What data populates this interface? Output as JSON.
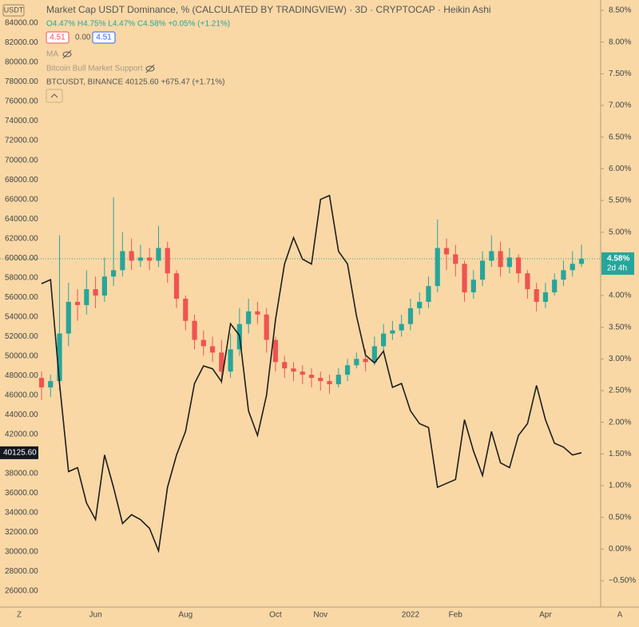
{
  "chart_data": {
    "type": "candlestick",
    "title": "Market Cap USDT Dominance, % (CALCULATED BY TRADINGVIEW) · 3D · CRYPTOCAP · Heikin Ashi",
    "ohlc_legend": "O4.47% H4.75% L4.47% C4.58% +0.05% (+1.21%)",
    "indicator_inputs": [
      "4.51",
      "0.00",
      "4.51"
    ],
    "indicators": [
      "MA",
      "Bitcoin Bull Market Support"
    ],
    "overlay_legend": "BTCUSDT, BINANCE  40125.60  +675.47 (+1.71%)",
    "scale_label": "USDT",
    "corner_labels": [
      "Z",
      "A"
    ],
    "categories": [
      null,
      null,
      null,
      null,
      null,
      null,
      "Jun",
      null,
      null,
      null,
      null,
      null,
      null,
      null,
      null,
      null,
      "Aug",
      null,
      null,
      null,
      null,
      null,
      null,
      null,
      null,
      null,
      "Oct",
      null,
      null,
      null,
      null,
      "Nov",
      null,
      null,
      null,
      null,
      null,
      null,
      null,
      null,
      null,
      "2022",
      null,
      null,
      null,
      null,
      "Feb",
      null,
      null,
      null,
      null,
      null,
      null,
      null,
      null,
      null,
      "Apr",
      null,
      null,
      null,
      null
    ],
    "up_color": "#26a69a",
    "down_color": "#ef5350",
    "axis": "y2",
    "open": [
      2.7,
      2.55,
      2.65,
      3.4,
      3.9,
      3.85,
      4.1,
      4.0,
      4.3,
      4.4,
      4.7,
      4.55,
      4.6,
      4.55,
      4.75,
      4.35,
      3.95,
      3.6,
      3.3,
      3.2,
      3.1,
      2.8,
      3.15,
      3.55,
      3.75,
      3.7,
      3.3,
      2.95,
      2.85,
      2.8,
      2.75,
      2.7,
      2.65,
      2.6,
      2.75,
      2.9,
      3.0,
      2.95,
      3.2,
      3.4,
      3.45,
      3.55,
      3.8,
      3.9,
      4.15,
      4.75,
      4.65,
      4.5,
      4.05,
      4.25,
      4.55,
      4.7,
      4.45,
      4.6,
      4.35,
      4.1,
      3.9,
      4.05,
      4.25,
      4.4,
      4.5
    ],
    "high": [
      2.8,
      2.75,
      4.95,
      4.2,
      4.1,
      4.4,
      4.3,
      4.6,
      5.55,
      5.0,
      4.9,
      4.8,
      4.75,
      5.1,
      4.85,
      4.4,
      4.0,
      3.7,
      3.45,
      3.35,
      3.3,
      3.4,
      3.8,
      3.95,
      3.9,
      3.8,
      3.35,
      3.05,
      2.95,
      2.9,
      2.85,
      2.8,
      2.75,
      2.85,
      3.0,
      3.1,
      3.15,
      3.35,
      3.55,
      3.6,
      3.7,
      3.95,
      4.05,
      4.3,
      5.2,
      4.9,
      4.8,
      4.55,
      4.4,
      4.7,
      4.95,
      4.85,
      4.75,
      4.65,
      4.4,
      4.2,
      4.2,
      4.35,
      4.55,
      4.7,
      4.8
    ],
    "low": [
      2.35,
      2.4,
      2.5,
      3.2,
      3.6,
      3.7,
      3.8,
      3.9,
      4.15,
      4.3,
      4.4,
      4.45,
      4.4,
      4.45,
      4.2,
      3.8,
      3.45,
      3.15,
      3.05,
      2.95,
      2.6,
      2.7,
      3.05,
      3.4,
      3.55,
      3.1,
      2.8,
      2.7,
      2.65,
      2.6,
      2.55,
      2.5,
      2.45,
      2.55,
      2.65,
      2.85,
      2.8,
      2.9,
      3.1,
      3.3,
      3.35,
      3.45,
      3.7,
      3.8,
      4.05,
      4.4,
      4.3,
      3.9,
      3.95,
      4.15,
      4.45,
      4.3,
      4.35,
      4.2,
      3.95,
      3.75,
      3.8,
      4.0,
      4.15,
      4.3,
      4.45
    ],
    "close": [
      2.55,
      2.65,
      3.4,
      3.9,
      3.85,
      4.1,
      4.0,
      4.3,
      4.4,
      4.7,
      4.55,
      4.6,
      4.55,
      4.75,
      4.35,
      3.95,
      3.6,
      3.3,
      3.2,
      3.1,
      2.8,
      3.15,
      3.55,
      3.75,
      3.7,
      3.3,
      2.95,
      2.85,
      2.8,
      2.75,
      2.7,
      2.65,
      2.6,
      2.75,
      2.9,
      3.0,
      2.95,
      3.2,
      3.4,
      3.45,
      3.55,
      3.8,
      3.9,
      4.15,
      4.75,
      4.65,
      4.5,
      4.05,
      4.25,
      4.55,
      4.7,
      4.45,
      4.6,
      4.35,
      4.1,
      3.9,
      4.05,
      4.25,
      4.4,
      4.5,
      4.58
    ],
    "overlay": {
      "type": "line",
      "color": "#1e1e1e",
      "values": [
        57400,
        57800,
        47200,
        38200,
        38600,
        35000,
        33300,
        39900,
        36600,
        32900,
        33800,
        33300,
        32400,
        30100,
        36600,
        39900,
        42300,
        47200,
        49000,
        48700,
        47400,
        53300,
        52100,
        44400,
        41900,
        46000,
        53700,
        59400,
        62100,
        59900,
        59400,
        66000,
        66400,
        60700,
        59400,
        54100,
        50100,
        49300,
        50500,
        46800,
        47200,
        44400,
        43100,
        42700,
        36600,
        37000,
        37400,
        43500,
        40300,
        37800,
        42300,
        39100,
        38600,
        41900,
        43100,
        47000,
        43500,
        41100,
        40700,
        39900,
        40125.6
      ]
    },
    "ylim": [
      26000,
      84000
    ],
    "yticks": [
      {
        "value": 84000,
        "label": "84000.00"
      },
      {
        "value": 82000,
        "label": "82000.00"
      },
      {
        "value": 80000,
        "label": "80000.00"
      },
      {
        "value": 78000,
        "label": "78000.00"
      },
      {
        "value": 76000,
        "label": "76000.00"
      },
      {
        "value": 74000,
        "label": "74000.00"
      },
      {
        "value": 72000,
        "label": "72000.00"
      },
      {
        "value": 70000,
        "label": "70000.00"
      },
      {
        "value": 68000,
        "label": "68000.00"
      },
      {
        "value": 66000,
        "label": "66000.00"
      },
      {
        "value": 64000,
        "label": "64000.00"
      },
      {
        "value": 62000,
        "label": "62000.00"
      },
      {
        "value": 60000,
        "label": "60000.00"
      },
      {
        "value": 58000,
        "label": "58000.00"
      },
      {
        "value": 56000,
        "label": "56000.00"
      },
      {
        "value": 54000,
        "label": "54000.00"
      },
      {
        "value": 52000,
        "label": "52000.00"
      },
      {
        "value": 50000,
        "label": "50000.00"
      },
      {
        "value": 48000,
        "label": "48000.00"
      },
      {
        "value": 46000,
        "label": "46000.00"
      },
      {
        "value": 44000,
        "label": "44000.00"
      },
      {
        "value": 42000,
        "label": "42000.00"
      },
      {
        "value": 38000,
        "label": "38000.00"
      },
      {
        "value": 36000,
        "label": "36000.00"
      },
      {
        "value": 34000,
        "label": "34000.00"
      },
      {
        "value": 32000,
        "label": "32000.00"
      },
      {
        "value": 30000,
        "label": "30000.00"
      },
      {
        "value": 28000,
        "label": "28000.00"
      },
      {
        "value": 26000,
        "label": "26000.00"
      }
    ],
    "y2lim": [
      -0.5,
      8.5
    ],
    "y2ticks": [
      {
        "value": 8.5,
        "label": "8.50%"
      },
      {
        "value": 8,
        "label": "8.00%"
      },
      {
        "value": 7.5,
        "label": "7.50%"
      },
      {
        "value": 7,
        "label": "7.00%"
      },
      {
        "value": 6.5,
        "label": "6.50%"
      },
      {
        "value": 6,
        "label": "6.00%"
      },
      {
        "value": 5.5,
        "label": "5.50%"
      },
      {
        "value": 5,
        "label": "5.00%"
      },
      {
        "value": 4,
        "label": "4.00%"
      },
      {
        "value": 3.5,
        "label": "3.50%"
      },
      {
        "value": 3,
        "label": "3.00%"
      },
      {
        "value": 2.5,
        "label": "2.50%"
      },
      {
        "value": 2,
        "label": "2.00%"
      },
      {
        "value": 1.5,
        "label": "1.50%"
      },
      {
        "value": 1,
        "label": "1.00%"
      },
      {
        "value": 0.5,
        "label": "0.50%"
      },
      {
        "value": 0,
        "label": "0.00%"
      },
      {
        "value": -0.5,
        "label": "−0.50%"
      }
    ],
    "price_badge": {
      "value": 40125.6,
      "label": "40125.60"
    },
    "last_badge": {
      "value": 4.58,
      "label": "4.58%",
      "note": "2d 4h"
    },
    "ma_badge": {
      "value": 4.51,
      "label": "4.51%"
    }
  }
}
